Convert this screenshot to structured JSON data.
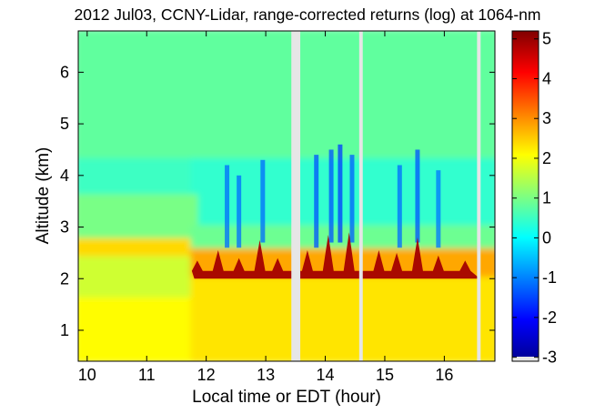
{
  "chart_data": {
    "type": "heatmap",
    "title": "2012 Jul03, CCNY-Lidar, range-corrected returns (log) at 1064-nm",
    "xlabel": "Local time or EDT (hour)",
    "ylabel": "Altitude (km)",
    "xlim": [
      9.85,
      16.85
    ],
    "ylim": [
      0.4,
      6.8
    ],
    "x_ticks": [
      {
        "value": 10,
        "label": "10"
      },
      {
        "value": 11,
        "label": "11"
      },
      {
        "value": 12,
        "label": "12"
      },
      {
        "value": 13,
        "label": "13"
      },
      {
        "value": 14,
        "label": "14"
      },
      {
        "value": 15,
        "label": "15"
      },
      {
        "value": 16,
        "label": "16"
      }
    ],
    "y_ticks": [
      {
        "value": 1,
        "label": "1"
      },
      {
        "value": 2,
        "label": "2"
      },
      {
        "value": 3,
        "label": "3"
      },
      {
        "value": 4,
        "label": "4"
      },
      {
        "value": 5,
        "label": "5"
      },
      {
        "value": 6,
        "label": "6"
      }
    ],
    "colorbar": {
      "colormap": "jet",
      "clim": [
        -3.1,
        5.2
      ],
      "ticks": [
        {
          "value": -3,
          "label": "-3"
        },
        {
          "value": -2,
          "label": "-2"
        },
        {
          "value": -1,
          "label": "-1"
        },
        {
          "value": 0,
          "label": "0"
        },
        {
          "value": 1,
          "label": "1"
        },
        {
          "value": 2,
          "label": "2"
        },
        {
          "value": 3,
          "label": "3"
        },
        {
          "value": 4,
          "label": "4"
        },
        {
          "value": 5,
          "label": "5"
        }
      ]
    },
    "data_gaps_hours": [
      [
        13.43,
        13.58
      ],
      [
        14.57,
        14.63
      ],
      [
        16.55,
        16.61
      ]
    ],
    "regions": [
      {
        "x": [
          9.85,
          16.85
        ],
        "y": [
          4.3,
          6.8
        ],
        "value": 0.8
      },
      {
        "x": [
          9.85,
          11.8
        ],
        "y": [
          3.6,
          4.3
        ],
        "value": 0.5
      },
      {
        "x": [
          11.8,
          16.85
        ],
        "y": [
          3.0,
          4.3
        ],
        "value": 0.4
      },
      {
        "x": [
          9.85,
          11.8
        ],
        "y": [
          2.75,
          3.6
        ],
        "value": 1.0
      },
      {
        "x": [
          9.85,
          11.8
        ],
        "y": [
          2.4,
          2.75
        ],
        "value": 2.4
      },
      {
        "x": [
          9.85,
          11.8
        ],
        "y": [
          1.6,
          2.4
        ],
        "value": 1.7
      },
      {
        "x": [
          9.85,
          11.8
        ],
        "y": [
          0.4,
          1.6
        ],
        "value": 2.1
      },
      {
        "x": [
          11.8,
          16.85
        ],
        "y": [
          2.55,
          3.0
        ],
        "value": 0.9
      },
      {
        "x": [
          11.8,
          16.85
        ],
        "y": [
          2.0,
          2.55
        ],
        "value": 2.8
      },
      {
        "x": [
          11.8,
          16.85
        ],
        "y": [
          0.4,
          2.0
        ],
        "value": 2.3
      }
    ],
    "aerosol_top_peaks": [
      {
        "x": 11.85,
        "y": 2.35
      },
      {
        "x": 12.2,
        "y": 2.55
      },
      {
        "x": 12.55,
        "y": 2.4
      },
      {
        "x": 12.9,
        "y": 2.75
      },
      {
        "x": 13.2,
        "y": 2.4
      },
      {
        "x": 13.7,
        "y": 2.55
      },
      {
        "x": 14.05,
        "y": 2.85
      },
      {
        "x": 14.4,
        "y": 2.9
      },
      {
        "x": 14.9,
        "y": 2.55
      },
      {
        "x": 15.2,
        "y": 2.5
      },
      {
        "x": 15.55,
        "y": 2.8
      },
      {
        "x": 15.9,
        "y": 2.45
      },
      {
        "x": 16.35,
        "y": 2.35
      }
    ],
    "cloud_streaks": [
      {
        "x": 12.35,
        "y": [
          2.6,
          4.2
        ],
        "value": -1.2
      },
      {
        "x": 12.55,
        "y": [
          2.6,
          4.0
        ],
        "value": -1.2
      },
      {
        "x": 12.95,
        "y": [
          2.7,
          4.3
        ],
        "value": -1.2
      },
      {
        "x": 13.85,
        "y": [
          2.6,
          4.4
        ],
        "value": -1.4
      },
      {
        "x": 14.1,
        "y": [
          2.7,
          4.5
        ],
        "value": -1.4
      },
      {
        "x": 14.25,
        "y": [
          2.7,
          4.6
        ],
        "value": -1.6
      },
      {
        "x": 14.45,
        "y": [
          2.7,
          4.4
        ],
        "value": -1.3
      },
      {
        "x": 15.25,
        "y": [
          2.6,
          4.2
        ],
        "value": -1.2
      },
      {
        "x": 15.55,
        "y": [
          2.7,
          4.5
        ],
        "value": -1.4
      },
      {
        "x": 15.9,
        "y": [
          2.6,
          4.1
        ],
        "value": -1.1
      }
    ],
    "grid": false,
    "legend": "none"
  }
}
